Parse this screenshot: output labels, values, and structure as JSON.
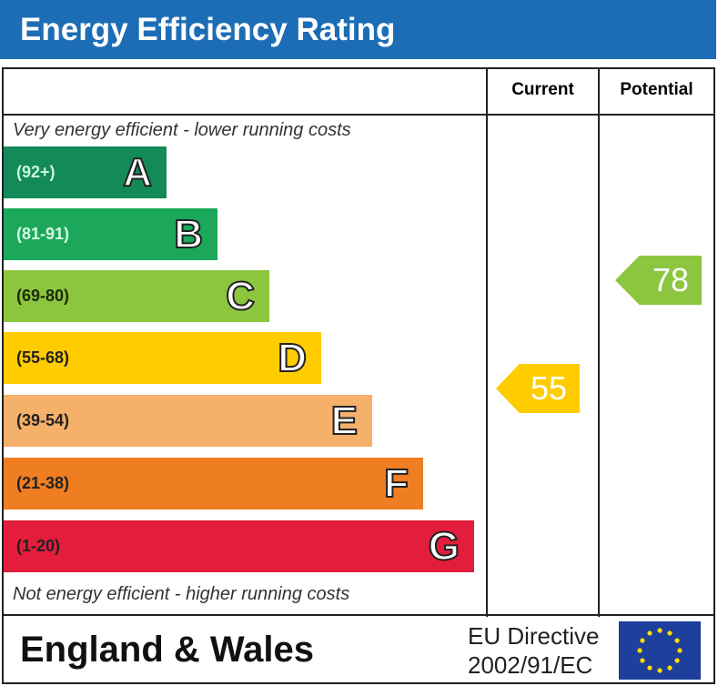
{
  "title": "Energy Efficiency Rating",
  "headers": {
    "current": "Current",
    "potential": "Potential"
  },
  "top_note": "Very energy efficient - lower running costs",
  "bottom_note": "Not energy efficient - higher running costs",
  "footer": {
    "region": "England & Wales",
    "directive_line1": "EU Directive",
    "directive_line2": "2002/91/EC"
  },
  "chart_data": {
    "type": "bar",
    "bands": [
      {
        "letter": "A",
        "range": "(92+)",
        "color": "#138a57",
        "range_color": "#c8f5e0"
      },
      {
        "letter": "B",
        "range": "(81-91)",
        "color": "#1ba85a",
        "range_color": "#d5f7e2"
      },
      {
        "letter": "C",
        "range": "(69-80)",
        "color": "#8cc63f",
        "range_color": "#1a2a0a"
      },
      {
        "letter": "D",
        "range": "(55-68)",
        "color": "#ffcc00",
        "range_color": "#222"
      },
      {
        "letter": "E",
        "range": "(39-54)",
        "color": "#f5b06a",
        "range_color": "#222"
      },
      {
        "letter": "F",
        "range": "(21-38)",
        "color": "#ef7d22",
        "range_color": "#222"
      },
      {
        "letter": "G",
        "range": "(1-20)",
        "color": "#e31d3c",
        "range_color": "#222"
      }
    ],
    "current": {
      "value": "55",
      "band": "D",
      "color": "#ffcc00"
    },
    "potential": {
      "value": "78",
      "band": "C",
      "color": "#8cc63f"
    }
  }
}
